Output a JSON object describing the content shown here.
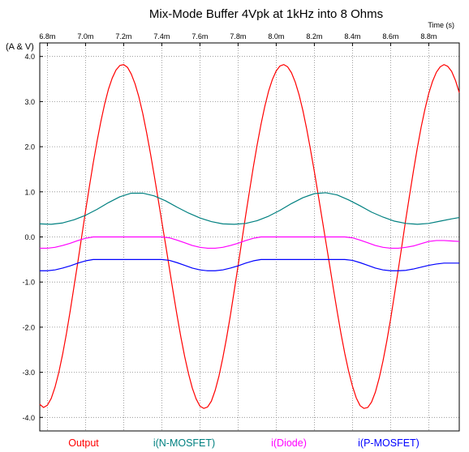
{
  "chart_data": {
    "type": "line",
    "title": "Mix-Mode Buffer 4Vpk at 1kHz into 8 Ohms",
    "xlabel": "Time  (s)",
    "ylabel": "(A & V)",
    "xlim": [
      6.76,
      8.96
    ],
    "ylim": [
      -4.3,
      4.3
    ],
    "x_ticks": [
      6.8,
      7.0,
      7.2,
      7.4,
      7.6,
      7.8,
      8.0,
      8.2,
      8.4,
      8.6,
      8.8
    ],
    "x_tick_labels": [
      "6.8m",
      "7.0m",
      "7.2m",
      "7.4m",
      "7.6m",
      "7.8m",
      "8.0m",
      "8.2m",
      "8.4m",
      "8.6m",
      "8.8m"
    ],
    "y_ticks": [
      4.0,
      3.0,
      2.0,
      1.0,
      0.0,
      -1.0,
      -2.0,
      -3.0,
      -4.0
    ],
    "y_tick_labels": [
      "4.0",
      "3.0",
      "2.0",
      "1.0",
      "0.0",
      "-1.0",
      "-2.0",
      "-3.0",
      "-4.0"
    ],
    "grid": true,
    "legend_position": "bottom",
    "series": [
      {
        "name": "Output",
        "color": "#ff0000",
        "x": [
          6.76,
          6.78,
          6.8,
          6.82,
          6.84,
          6.86,
          6.88,
          6.9,
          6.92,
          6.94,
          6.96,
          6.98,
          7.0,
          7.02,
          7.04,
          7.06,
          7.08,
          7.1,
          7.12,
          7.14,
          7.16,
          7.18,
          7.2,
          7.22,
          7.24,
          7.26,
          7.28,
          7.3,
          7.32,
          7.34,
          7.36,
          7.38,
          7.4,
          7.42,
          7.44,
          7.46,
          7.48,
          7.5,
          7.52,
          7.54,
          7.56,
          7.58,
          7.6,
          7.62,
          7.64,
          7.66,
          7.68,
          7.7,
          7.72,
          7.74,
          7.76,
          7.78,
          7.8,
          7.82,
          7.84,
          7.86,
          7.88,
          7.9,
          7.92,
          7.94,
          7.96,
          7.98,
          8.0,
          8.02,
          8.04,
          8.06,
          8.08,
          8.1,
          8.12,
          8.14,
          8.16,
          8.18,
          8.2,
          8.22,
          8.24,
          8.26,
          8.28,
          8.3,
          8.32,
          8.34,
          8.36,
          8.38,
          8.4,
          8.42,
          8.44,
          8.46,
          8.48,
          8.5,
          8.52,
          8.54,
          8.56,
          8.58,
          8.6,
          8.62,
          8.64,
          8.66,
          8.68,
          8.7,
          8.72,
          8.74,
          8.76,
          8.78,
          8.8,
          8.82,
          8.84,
          8.86,
          8.88,
          8.9,
          8.92,
          8.94,
          8.96
        ],
        "y": [
          -3.71,
          -3.78,
          -3.73,
          -3.58,
          -3.33,
          -3.0,
          -2.6,
          -2.14,
          -1.63,
          -1.09,
          -0.55,
          0.01,
          0.57,
          1.11,
          1.63,
          2.11,
          2.55,
          2.94,
          3.27,
          3.52,
          3.7,
          3.8,
          3.82,
          3.76,
          3.61,
          3.39,
          3.1,
          2.74,
          2.32,
          1.86,
          1.37,
          0.86,
          0.34,
          -0.17,
          -0.7,
          -1.23,
          -1.74,
          -2.22,
          -2.65,
          -3.03,
          -3.35,
          -3.59,
          -3.75,
          -3.8,
          -3.77,
          -3.64,
          -3.4,
          -3.08,
          -2.68,
          -2.23,
          -1.73,
          -1.19,
          -0.64,
          -0.08,
          0.48,
          1.02,
          1.55,
          2.04,
          2.49,
          2.89,
          3.23,
          3.49,
          3.68,
          3.79,
          3.82,
          3.77,
          3.64,
          3.43,
          3.15,
          2.8,
          2.39,
          1.93,
          1.45,
          0.94,
          0.42,
          -0.1,
          -0.62,
          -1.15,
          -1.66,
          -2.15,
          -2.59,
          -2.98,
          -3.31,
          -3.57,
          -3.74,
          -3.8,
          -3.78,
          -3.66,
          -3.44,
          -3.13,
          -2.75,
          -2.31,
          -1.82,
          -1.28,
          -0.73,
          -0.17,
          0.4,
          0.94,
          1.47,
          1.97,
          2.43,
          2.83,
          3.18,
          3.45,
          3.65,
          3.77,
          3.82,
          3.78,
          3.67,
          3.47,
          3.2
        ],
        "note_y_is_output_voltage": "sampled from the plotted curve"
      },
      {
        "name": "i(N-MOSFET)",
        "color": "#008080",
        "x": [
          6.76,
          6.82,
          6.88,
          6.94,
          7.0,
          7.06,
          7.12,
          7.18,
          7.24,
          7.3,
          7.36,
          7.42,
          7.48,
          7.54,
          7.6,
          7.66,
          7.72,
          7.78,
          7.84,
          7.9,
          7.96,
          8.02,
          8.08,
          8.14,
          8.2,
          8.26,
          8.32,
          8.38,
          8.44,
          8.5,
          8.56,
          8.62,
          8.68,
          8.74,
          8.8,
          8.86,
          8.92,
          8.96
        ],
        "y": [
          0.29,
          0.28,
          0.31,
          0.38,
          0.48,
          0.61,
          0.76,
          0.89,
          0.97,
          0.97,
          0.91,
          0.8,
          0.66,
          0.53,
          0.42,
          0.34,
          0.29,
          0.28,
          0.3,
          0.36,
          0.46,
          0.59,
          0.74,
          0.87,
          0.96,
          0.98,
          0.93,
          0.82,
          0.69,
          0.55,
          0.44,
          0.35,
          0.3,
          0.28,
          0.3,
          0.35,
          0.4,
          0.43
        ]
      },
      {
        "name": "i(Diode)",
        "color": "#ff00ff",
        "x": [
          6.76,
          6.8,
          6.84,
          6.88,
          6.92,
          6.96,
          7.0,
          7.04,
          7.08,
          7.12,
          7.16,
          7.2,
          7.24,
          7.28,
          7.32,
          7.36,
          7.4,
          7.44,
          7.48,
          7.52,
          7.56,
          7.6,
          7.64,
          7.68,
          7.72,
          7.76,
          7.8,
          7.84,
          7.88,
          7.92,
          7.96,
          8.0,
          8.04,
          8.08,
          8.12,
          8.16,
          8.2,
          8.24,
          8.28,
          8.32,
          8.36,
          8.4,
          8.44,
          8.48,
          8.52,
          8.56,
          8.6,
          8.64,
          8.68,
          8.72,
          8.76,
          8.8,
          8.84,
          8.88,
          8.92,
          8.96
        ],
        "y": [
          -0.25,
          -0.25,
          -0.23,
          -0.19,
          -0.14,
          -0.08,
          -0.03,
          0.0,
          0.0,
          0.0,
          0.0,
          0.0,
          0.0,
          0.0,
          0.0,
          0.0,
          0.0,
          -0.02,
          -0.07,
          -0.13,
          -0.19,
          -0.23,
          -0.25,
          -0.25,
          -0.23,
          -0.19,
          -0.14,
          -0.08,
          -0.03,
          0.0,
          0.0,
          0.0,
          0.0,
          0.0,
          0.0,
          0.0,
          0.0,
          0.0,
          0.0,
          0.0,
          0.0,
          -0.02,
          -0.07,
          -0.13,
          -0.19,
          -0.23,
          -0.25,
          -0.25,
          -0.23,
          -0.2,
          -0.15,
          -0.1,
          -0.08,
          -0.08,
          -0.09,
          -0.1
        ]
      },
      {
        "name": "i(P-MOSFET)",
        "color": "#0000ff",
        "x": [
          6.76,
          6.8,
          6.84,
          6.88,
          6.92,
          6.96,
          7.0,
          7.04,
          7.08,
          7.12,
          7.16,
          7.2,
          7.24,
          7.28,
          7.32,
          7.36,
          7.4,
          7.44,
          7.48,
          7.52,
          7.56,
          7.6,
          7.64,
          7.68,
          7.72,
          7.76,
          7.8,
          7.84,
          7.88,
          7.92,
          7.96,
          8.0,
          8.04,
          8.08,
          8.12,
          8.16,
          8.2,
          8.24,
          8.28,
          8.32,
          8.36,
          8.4,
          8.44,
          8.48,
          8.52,
          8.56,
          8.6,
          8.64,
          8.68,
          8.72,
          8.76,
          8.8,
          8.84,
          8.88,
          8.92,
          8.96
        ],
        "y": [
          -0.75,
          -0.75,
          -0.73,
          -0.69,
          -0.64,
          -0.58,
          -0.53,
          -0.5,
          -0.5,
          -0.5,
          -0.5,
          -0.5,
          -0.5,
          -0.5,
          -0.5,
          -0.5,
          -0.5,
          -0.52,
          -0.57,
          -0.63,
          -0.69,
          -0.73,
          -0.75,
          -0.75,
          -0.73,
          -0.69,
          -0.64,
          -0.58,
          -0.53,
          -0.5,
          -0.5,
          -0.5,
          -0.5,
          -0.5,
          -0.5,
          -0.5,
          -0.5,
          -0.5,
          -0.5,
          -0.5,
          -0.5,
          -0.52,
          -0.57,
          -0.63,
          -0.69,
          -0.73,
          -0.75,
          -0.75,
          -0.74,
          -0.71,
          -0.67,
          -0.63,
          -0.6,
          -0.58,
          -0.58,
          -0.58
        ]
      }
    ]
  }
}
